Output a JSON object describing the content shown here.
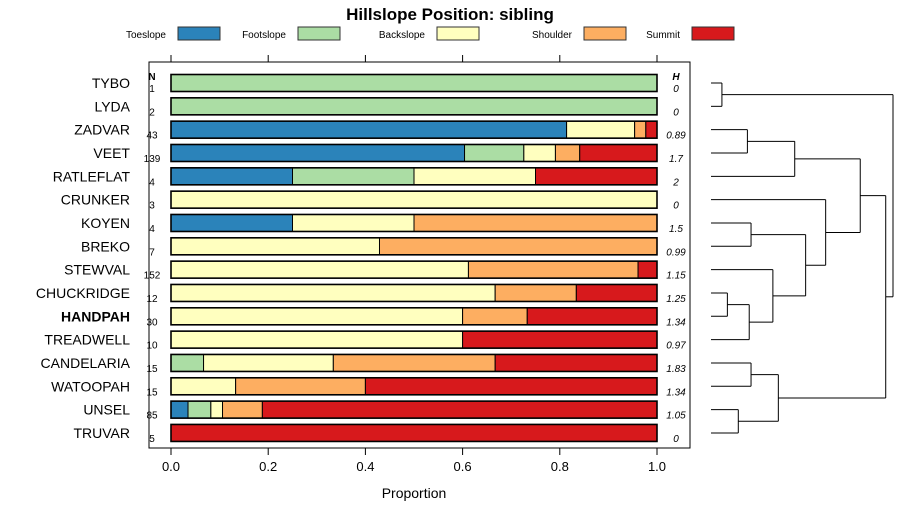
{
  "chart_data": {
    "type": "bar",
    "stacked": true,
    "orientation": "horizontal",
    "title": "Hillslope Position: sibling",
    "xlabel": "Proportion",
    "ylabel": "",
    "xlim": [
      0,
      1
    ],
    "x_ticks": [
      "0.0",
      "0.2",
      "0.4",
      "0.6",
      "0.8",
      "1.0"
    ],
    "x_tick_values": [
      0,
      0.2,
      0.4,
      0.6,
      0.8,
      1.0
    ],
    "n_header": "N",
    "h_header": "H",
    "legend_position": "top",
    "legend": [
      {
        "name": "Toeslope",
        "color": "#2B83BA"
      },
      {
        "name": "Footslope",
        "color": "#ABDDA4"
      },
      {
        "name": "Backslope",
        "color": "#FFFFBF"
      },
      {
        "name": "Shoulder",
        "color": "#FDAE61"
      },
      {
        "name": "Summit",
        "color": "#D7191C"
      }
    ],
    "highlight": "HANDPAH",
    "rows": [
      {
        "name": "TYBO",
        "n": "1",
        "h": "0",
        "values": [
          0,
          1,
          0,
          0,
          0
        ]
      },
      {
        "name": "LYDA",
        "n": "2",
        "h": "0",
        "values": [
          0,
          1,
          0,
          0,
          0
        ]
      },
      {
        "name": "ZADVAR",
        "n": "43",
        "h": "0.89",
        "values": [
          0.814,
          0,
          0.14,
          0.023,
          0.023
        ]
      },
      {
        "name": "VEET",
        "n": "139",
        "h": "1.7",
        "values": [
          0.604,
          0.122,
          0.065,
          0.05,
          0.159
        ]
      },
      {
        "name": "RATLEFLAT",
        "n": "4",
        "h": "2",
        "values": [
          0.25,
          0.25,
          0.25,
          0,
          0.25
        ]
      },
      {
        "name": "CRUNKER",
        "n": "3",
        "h": "0",
        "values": [
          0,
          0,
          1,
          0,
          0
        ]
      },
      {
        "name": "KOYEN",
        "n": "4",
        "h": "1.5",
        "values": [
          0.25,
          0,
          0.25,
          0.5,
          0
        ]
      },
      {
        "name": "BREKO",
        "n": "7",
        "h": "0.99",
        "values": [
          0,
          0,
          0.429,
          0.571,
          0
        ]
      },
      {
        "name": "STEWVAL",
        "n": "152",
        "h": "1.15",
        "values": [
          0,
          0,
          0.612,
          0.349,
          0.039
        ]
      },
      {
        "name": "CHUCKRIDGE",
        "n": "12",
        "h": "1.25",
        "values": [
          0,
          0,
          0.667,
          0.167,
          0.166
        ]
      },
      {
        "name": "HANDPAH",
        "n": "30",
        "h": "1.34",
        "values": [
          0,
          0,
          0.6,
          0.133,
          0.267
        ]
      },
      {
        "name": "TREADWELL",
        "n": "10",
        "h": "0.97",
        "values": [
          0,
          0,
          0.6,
          0,
          0.4
        ]
      },
      {
        "name": "CANDELARIA",
        "n": "15",
        "h": "1.83",
        "values": [
          0,
          0.067,
          0.267,
          0.333,
          0.333
        ]
      },
      {
        "name": "WATOOPAH",
        "n": "15",
        "h": "1.34",
        "values": [
          0,
          0,
          0.133,
          0.267,
          0.6
        ]
      },
      {
        "name": "UNSEL",
        "n": "85",
        "h": "1.05",
        "values": [
          0.035,
          0.047,
          0.024,
          0.082,
          0.812
        ]
      },
      {
        "name": "TRUVAR",
        "n": "5",
        "h": "0",
        "values": [
          0,
          0,
          0,
          0,
          1
        ]
      }
    ],
    "dendrogram": {
      "h": 1.0,
      "c": [
        {
          "h": 0.06,
          "c": [
            "TYBO",
            "LYDA"
          ]
        },
        {
          "h": 0.96,
          "c": [
            {
              "h": 0.82,
              "c": [
                {
                  "h": 0.46,
                  "c": [
                    {
                      "h": 0.2,
                      "c": [
                        "ZADVAR",
                        "VEET"
                      ]
                    },
                    "RATLEFLAT"
                  ]
                },
                {
                  "h": 0.63,
                  "c": [
                    "CRUNKER",
                    {
                      "h": 0.52,
                      "c": [
                        {
                          "h": 0.22,
                          "c": [
                            "KOYEN",
                            "BREKO"
                          ]
                        },
                        {
                          "h": 0.34,
                          "c": [
                            "STEWVAL",
                            {
                              "h": 0.21,
                              "c": [
                                {
                                  "h": 0.09,
                                  "c": [
                                    "CHUCKRIDGE",
                                    "HANDPAH"
                                  ]
                                },
                                "TREADWELL"
                              ]
                            }
                          ]
                        }
                      ]
                    }
                  ]
                }
              ]
            },
            {
              "h": 0.37,
              "c": [
                {
                  "h": 0.22,
                  "c": [
                    "CANDELARIA",
                    "WATOOPAH"
                  ]
                },
                {
                  "h": 0.15,
                  "c": [
                    "UNSEL",
                    "TRUVAR"
                  ]
                }
              ]
            }
          ]
        }
      ]
    }
  }
}
